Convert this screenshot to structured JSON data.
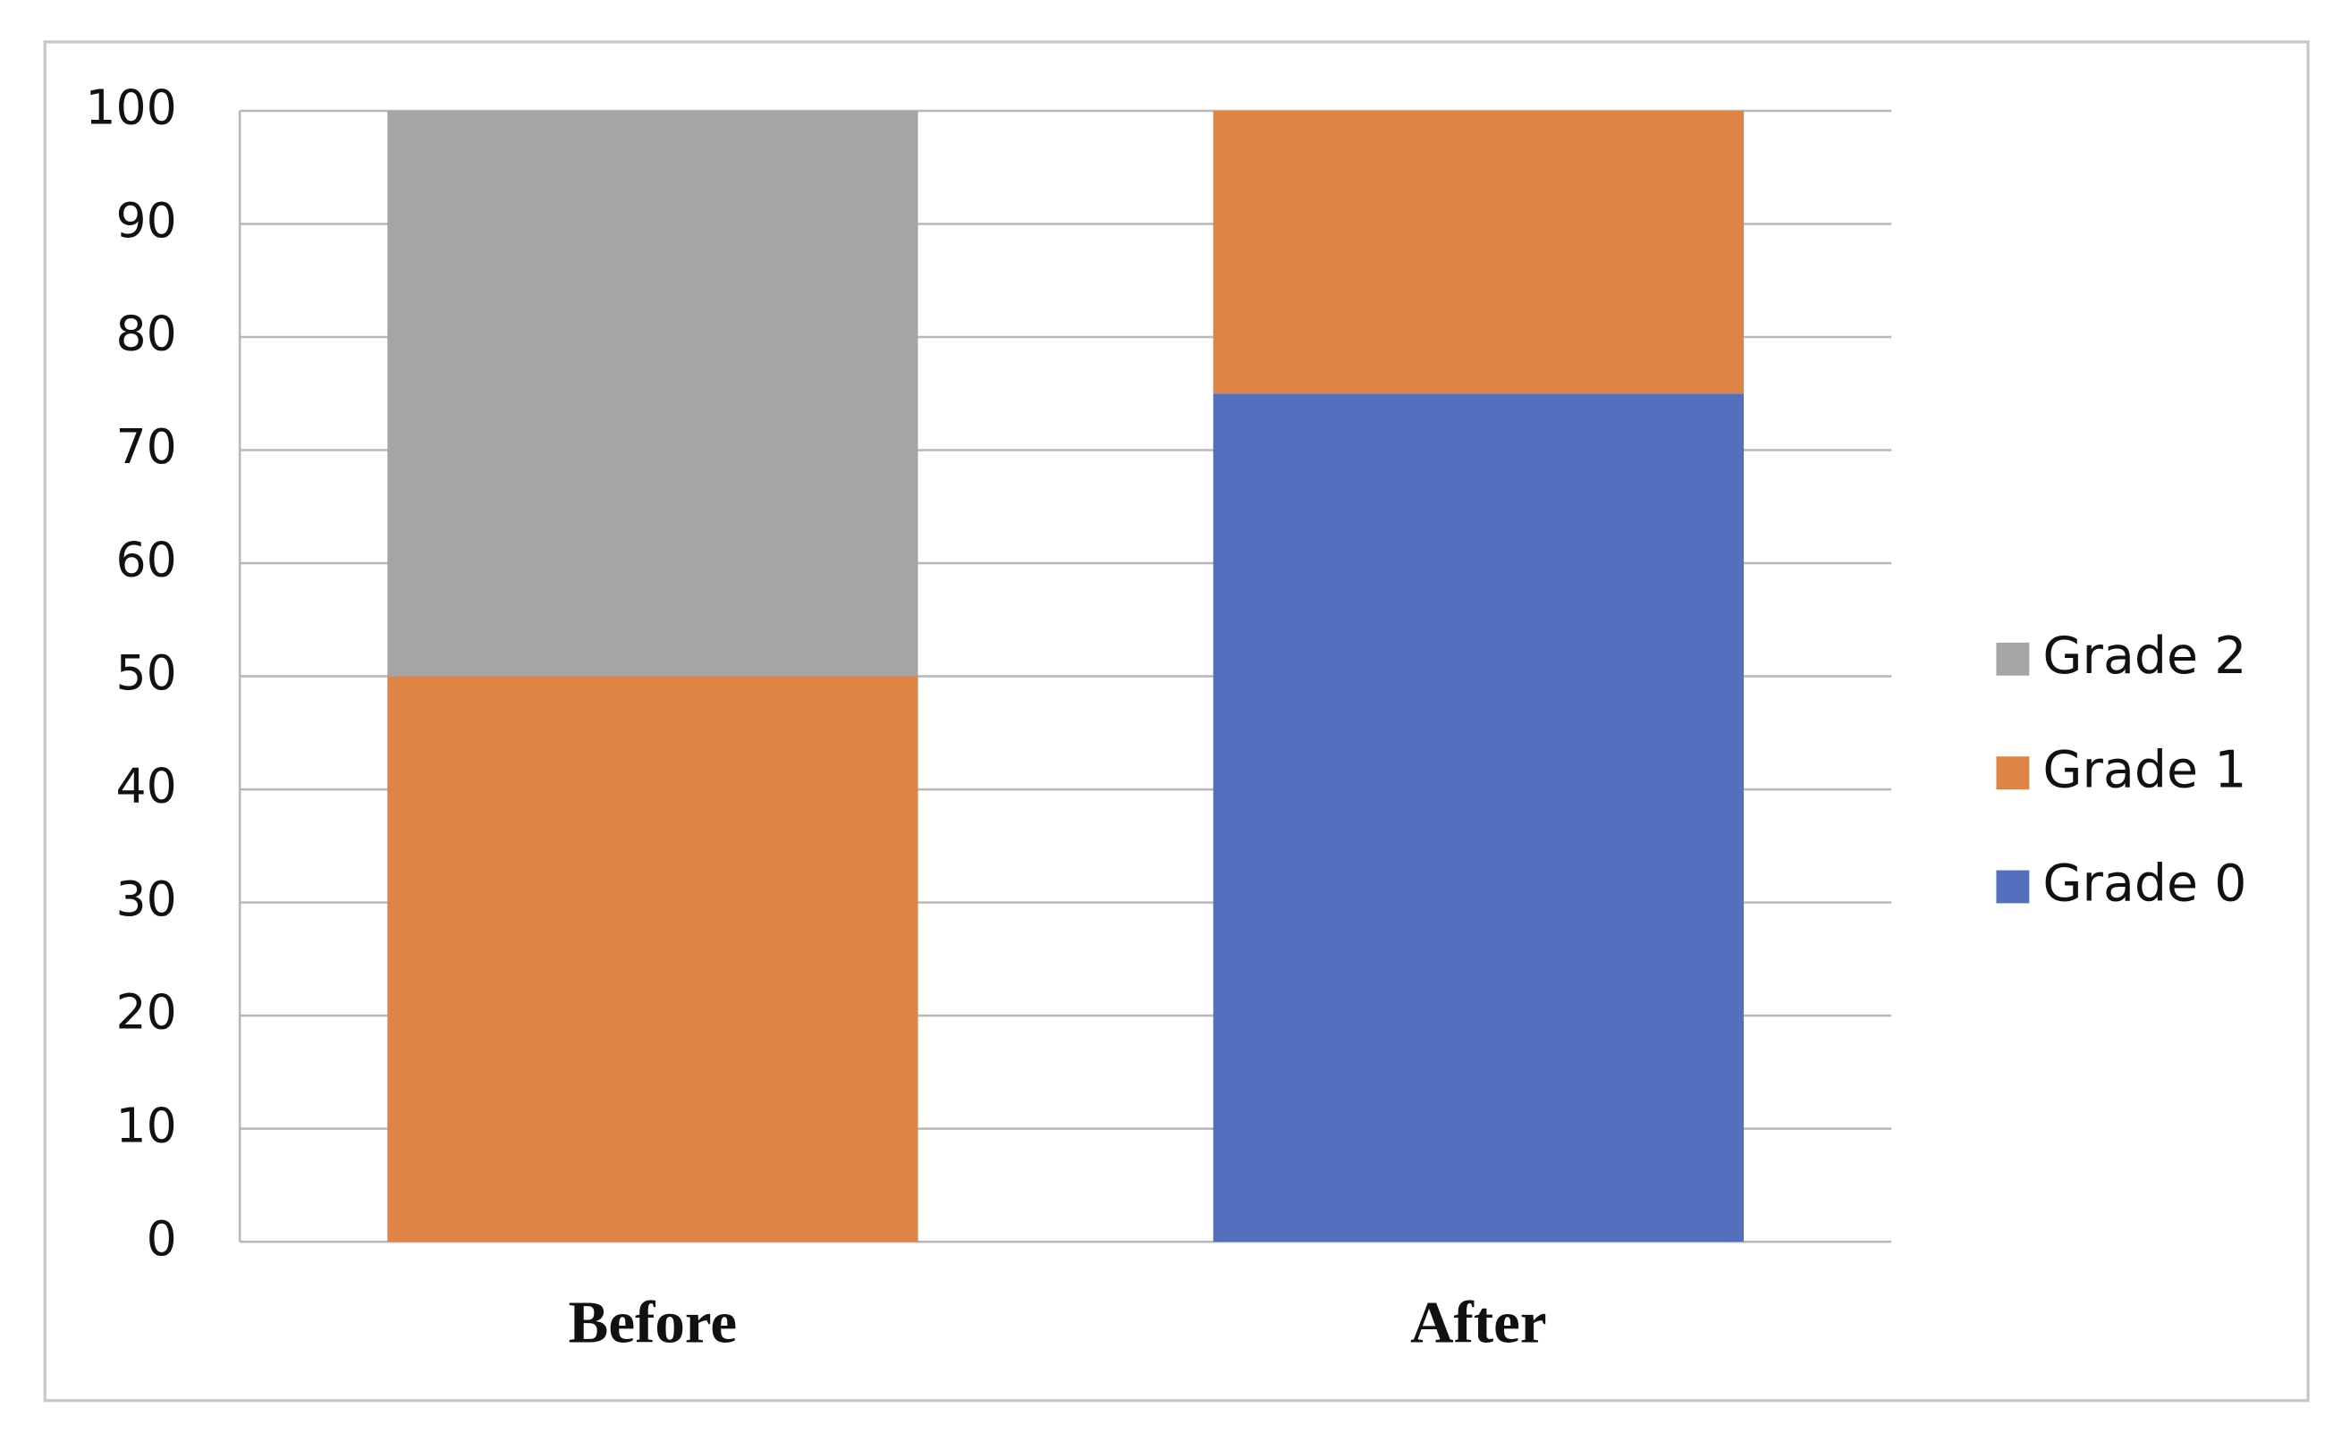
{
  "chart_data": {
    "type": "stacked-bar",
    "categories": [
      "Before",
      "After"
    ],
    "series": [
      {
        "name": "Grade 0",
        "color": "#5270be",
        "values": [
          0,
          75
        ]
      },
      {
        "name": "Grade 1",
        "color": "#df8445",
        "values": [
          50,
          25
        ]
      },
      {
        "name": "Grade 2",
        "color": "#a5a5a5",
        "values": [
          50,
          0
        ]
      }
    ],
    "ylim": [
      0,
      100
    ],
    "yticks": [
      0,
      10,
      20,
      30,
      40,
      50,
      60,
      70,
      80,
      90,
      100
    ],
    "grid": true,
    "legend": "right"
  }
}
